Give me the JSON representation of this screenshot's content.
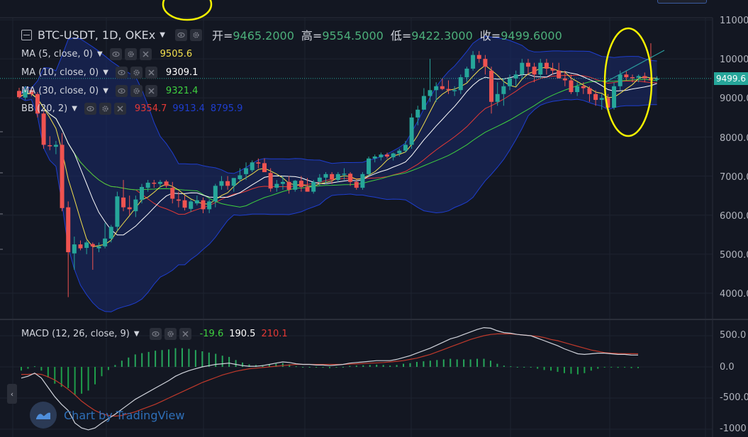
{
  "title": {
    "symbol": "BTC-USDT, 1D, OKEx",
    "open_label": "开=",
    "open": "9465.2000",
    "high_label": "高=",
    "high": "9554.5000",
    "low_label": "低=",
    "low": "9422.3000",
    "close_label": "收=",
    "close": "9499.6000"
  },
  "indicators": [
    {
      "label": "MA (5, close, 0)",
      "values": [
        "9505.6"
      ],
      "colors": [
        "#f4e04d"
      ]
    },
    {
      "label": "MA (10, close, 0)",
      "values": [
        "9309.1"
      ],
      "colors": [
        "#ffffff"
      ]
    },
    {
      "label": "MA (30, close, 0)",
      "values": [
        "9321.4"
      ],
      "colors": [
        "#3fd13f"
      ]
    },
    {
      "label": "BB (20, 2)",
      "values": [
        "9354.7",
        "9913.4",
        "8795.9"
      ],
      "colors": [
        "#e53935",
        "#1e3ecf",
        "#1e3ecf"
      ]
    }
  ],
  "macd": {
    "label": "MACD (12, 26, close, 9)",
    "values": [
      "-19.6",
      "190.5",
      "210.1"
    ],
    "colors": [
      "#3fd13f",
      "#ffffff",
      "#e53935"
    ]
  },
  "price_axis": {
    "ticks": [
      "11000.0",
      "10000.0",
      "9000.0",
      "8000.0",
      "7000.0",
      "6000.0",
      "5000.0",
      "4000.0"
    ],
    "last_price": "9499.6"
  },
  "macd_axis": {
    "ticks": [
      "500.0",
      "0.0",
      "-500.0",
      "-1000"
    ]
  },
  "watermark": "Chart by TradingView",
  "colors": {
    "background": "#131722",
    "up": "#26a69a",
    "down": "#ef5350",
    "grid": "#1e2330",
    "bb_fill": "#1a2a6c",
    "highlight": "#f5f200"
  },
  "chart_data": {
    "type": "candlestick",
    "title": "BTC-USDT, 1D, OKEx",
    "ylim": [
      3500,
      11000
    ],
    "yticks": [
      4000,
      5000,
      6000,
      7000,
      8000,
      9000,
      10000,
      11000
    ],
    "candles": [
      [
        9180,
        9260,
        8980,
        9020
      ],
      [
        9010,
        9300,
        8950,
        9200
      ],
      [
        9200,
        9250,
        9040,
        9100
      ],
      [
        9100,
        9150,
        8500,
        8600
      ],
      [
        8600,
        8650,
        7700,
        7800
      ],
      [
        7790,
        8020,
        7660,
        7780
      ],
      [
        7750,
        7900,
        7560,
        7800
      ],
      [
        7800,
        8100,
        6100,
        6180
      ],
      [
        6200,
        6350,
        3900,
        5050
      ],
      [
        5020,
        5450,
        4600,
        5250
      ],
      [
        5250,
        5350,
        5100,
        5150
      ],
      [
        5160,
        5350,
        5000,
        5300
      ],
      [
        5260,
        5300,
        4600,
        5200
      ],
      [
        5150,
        5300,
        5050,
        5200
      ],
      [
        5200,
        5800,
        5150,
        5400
      ],
      [
        5400,
        5750,
        5300,
        5700
      ],
      [
        5700,
        6600,
        5600,
        6480
      ],
      [
        6450,
        6900,
        6100,
        6200
      ],
      [
        6200,
        6500,
        6000,
        6150
      ],
      [
        6100,
        6500,
        5950,
        6400
      ],
      [
        6390,
        6800,
        6300,
        6720
      ],
      [
        6700,
        6900,
        6600,
        6830
      ],
      [
        6830,
        6900,
        6700,
        6820
      ],
      [
        6800,
        6900,
        6700,
        6850
      ],
      [
        6860,
        6900,
        6700,
        6750
      ],
      [
        6700,
        6850,
        6300,
        6420
      ],
      [
        6400,
        6600,
        6200,
        6370
      ],
      [
        6380,
        6500,
        6120,
        6190
      ],
      [
        6160,
        6400,
        6080,
        6350
      ],
      [
        6300,
        6500,
        6250,
        6380
      ],
      [
        6380,
        6450,
        6050,
        6150
      ],
      [
        6150,
        6400,
        6050,
        6350
      ],
      [
        6350,
        6800,
        6200,
        6750
      ],
      [
        6750,
        7000,
        6650,
        6870
      ],
      [
        6870,
        7000,
        6650,
        6750
      ],
      [
        6750,
        6950,
        6600,
        6950
      ],
      [
        6920,
        7200,
        6850,
        7020
      ],
      [
        7050,
        7350,
        6900,
        7200
      ],
      [
        7150,
        7400,
        7100,
        7350
      ],
      [
        7350,
        7450,
        7200,
        7320
      ],
      [
        7330,
        7450,
        7150,
        7100
      ],
      [
        7080,
        7200,
        6600,
        6680
      ],
      [
        6700,
        6900,
        6600,
        6800
      ],
      [
        6800,
        7000,
        6650,
        6850
      ],
      [
        6850,
        7000,
        6550,
        6650
      ],
      [
        6650,
        6900,
        6600,
        6880
      ],
      [
        6880,
        7000,
        6600,
        6720
      ],
      [
        6720,
        6950,
        6600,
        6600
      ],
      [
        6600,
        6900,
        6550,
        6850
      ],
      [
        6850,
        7050,
        6750,
        6960
      ],
      [
        6960,
        7100,
        6800,
        7050
      ],
      [
        7050,
        7100,
        6800,
        6920
      ],
      [
        6900,
        7100,
        6850,
        7050
      ],
      [
        7050,
        7200,
        6900,
        7060
      ],
      [
        7060,
        7100,
        6750,
        6850
      ],
      [
        6850,
        6900,
        6650,
        6700
      ],
      [
        6700,
        7100,
        6650,
        7050
      ],
      [
        7050,
        7500,
        7000,
        7450
      ],
      [
        7450,
        7550,
        7350,
        7500
      ],
      [
        7480,
        7600,
        7400,
        7550
      ],
      [
        7550,
        7600,
        7450,
        7500
      ],
      [
        7480,
        7600,
        7400,
        7580
      ],
      [
        7580,
        7700,
        7500,
        7650
      ],
      [
        7650,
        7900,
        7600,
        7800
      ],
      [
        7800,
        8600,
        7700,
        8500
      ],
      [
        8500,
        8800,
        8300,
        8700
      ],
      [
        8700,
        9250,
        8700,
        9050
      ],
      [
        9050,
        10000,
        8900,
        9200
      ],
      [
        9200,
        9400,
        8900,
        9300
      ],
      [
        9300,
        9500,
        9200,
        9230
      ],
      [
        9230,
        9450,
        9100,
        9200
      ],
      [
        9200,
        9300,
        9050,
        9200
      ],
      [
        9200,
        9600,
        9100,
        9530
      ],
      [
        9530,
        9800,
        9400,
        9750
      ],
      [
        9750,
        10200,
        9700,
        10100
      ],
      [
        10100,
        10200,
        9900,
        10000
      ],
      [
        10000,
        10100,
        9600,
        9800
      ],
      [
        9700,
        9800,
        8600,
        8900
      ],
      [
        8900,
        9400,
        8800,
        9100
      ],
      [
        9100,
        9500,
        8800,
        9300
      ],
      [
        9300,
        9600,
        9200,
        9500
      ],
      [
        9500,
        9700,
        9300,
        9600
      ],
      [
        9600,
        10000,
        9500,
        9900
      ],
      [
        9900,
        10000,
        9600,
        9800
      ],
      [
        9800,
        9900,
        9400,
        9600
      ],
      [
        9600,
        10000,
        9500,
        9900
      ],
      [
        9900,
        10000,
        9600,
        9750
      ],
      [
        9750,
        9900,
        9600,
        9700
      ],
      [
        9700,
        9900,
        9500,
        9500
      ],
      [
        9500,
        9700,
        9300,
        9450
      ],
      [
        9450,
        9600,
        9100,
        9150
      ],
      [
        9150,
        9400,
        9050,
        9300
      ],
      [
        9300,
        9400,
        9100,
        9250
      ],
      [
        9250,
        9300,
        8900,
        9100
      ],
      [
        9100,
        9200,
        8800,
        8950
      ],
      [
        8950,
        9100,
        8700,
        9000
      ],
      [
        9000,
        9100,
        8650,
        8750
      ],
      [
        8750,
        9400,
        8700,
        9300
      ],
      [
        9300,
        9700,
        9200,
        9600
      ],
      [
        9600,
        9700,
        9450,
        9530
      ],
      [
        9530,
        9600,
        9400,
        9520
      ],
      [
        9520,
        9600,
        9400,
        9560
      ],
      [
        9560,
        9650,
        9400,
        9500
      ],
      [
        9500,
        10400,
        9350,
        9450
      ],
      [
        9465,
        9555,
        9422,
        9500
      ]
    ],
    "macd_ylim": [
      -1100,
      700
    ],
    "macd_yticks": [
      500,
      0,
      -500,
      -1000
    ],
    "macd_line": [
      -180,
      -150,
      -100,
      -180,
      -330,
      -480,
      -600,
      -700,
      -900,
      -980,
      -1010,
      -980,
      -900,
      -830,
      -760,
      -680,
      -600,
      -520,
      -460,
      -400,
      -340,
      -280,
      -220,
      -150,
      -100,
      -60,
      -30,
      0,
      20,
      40,
      50,
      60,
      40,
      20,
      10,
      10,
      20,
      40,
      60,
      80,
      70,
      50,
      40,
      40,
      30,
      30,
      20,
      30,
      40,
      60,
      70,
      80,
      90,
      100,
      100,
      100,
      120,
      150,
      180,
      220,
      260,
      300,
      350,
      400,
      450,
      480,
      520,
      560,
      600,
      630,
      620,
      580,
      550,
      540,
      520,
      510,
      500,
      460,
      420,
      380,
      340,
      290,
      250,
      210,
      200,
      210,
      220,
      220,
      210,
      200,
      200,
      190,
      190
    ],
    "macd_signal": [
      -120,
      -120,
      -110,
      -120,
      -160,
      -210,
      -280,
      -360,
      -450,
      -550,
      -630,
      -700,
      -750,
      -780,
      -790,
      -780,
      -750,
      -720,
      -680,
      -640,
      -600,
      -550,
      -500,
      -450,
      -400,
      -350,
      -300,
      -250,
      -210,
      -170,
      -130,
      -100,
      -70,
      -50,
      -30,
      -20,
      -10,
      0,
      10,
      20,
      30,
      40,
      40,
      40,
      40,
      40,
      40,
      40,
      40,
      45,
      50,
      55,
      60,
      65,
      70,
      80,
      90,
      100,
      120,
      140,
      170,
      200,
      240,
      280,
      320,
      360,
      400,
      440,
      470,
      500,
      520,
      530,
      530,
      530,
      520,
      510,
      500,
      490,
      470,
      440,
      420,
      390,
      360,
      330,
      300,
      270,
      250,
      230,
      220,
      215,
      212,
      211,
      210
    ],
    "macd_hist": [
      -60,
      -30,
      10,
      -60,
      -170,
      -270,
      -320,
      -340,
      -450,
      -430,
      -380,
      -280,
      -150,
      -50,
      30,
      100,
      150,
      200,
      220,
      240,
      260,
      270,
      280,
      300,
      300,
      290,
      270,
      250,
      230,
      210,
      180,
      160,
      110,
      70,
      40,
      30,
      30,
      40,
      50,
      60,
      40,
      10,
      0,
      0,
      -10,
      -10,
      -20,
      -10,
      0,
      15,
      20,
      25,
      30,
      35,
      30,
      20,
      30,
      50,
      60,
      80,
      90,
      100,
      110,
      120,
      130,
      120,
      120,
      120,
      130,
      130,
      100,
      50,
      20,
      10,
      0,
      0,
      0,
      -30,
      -50,
      -60,
      -80,
      -100,
      -110,
      -120,
      -100,
      -60,
      -30,
      -10,
      -10,
      -15,
      -12,
      -20,
      -20
    ]
  }
}
